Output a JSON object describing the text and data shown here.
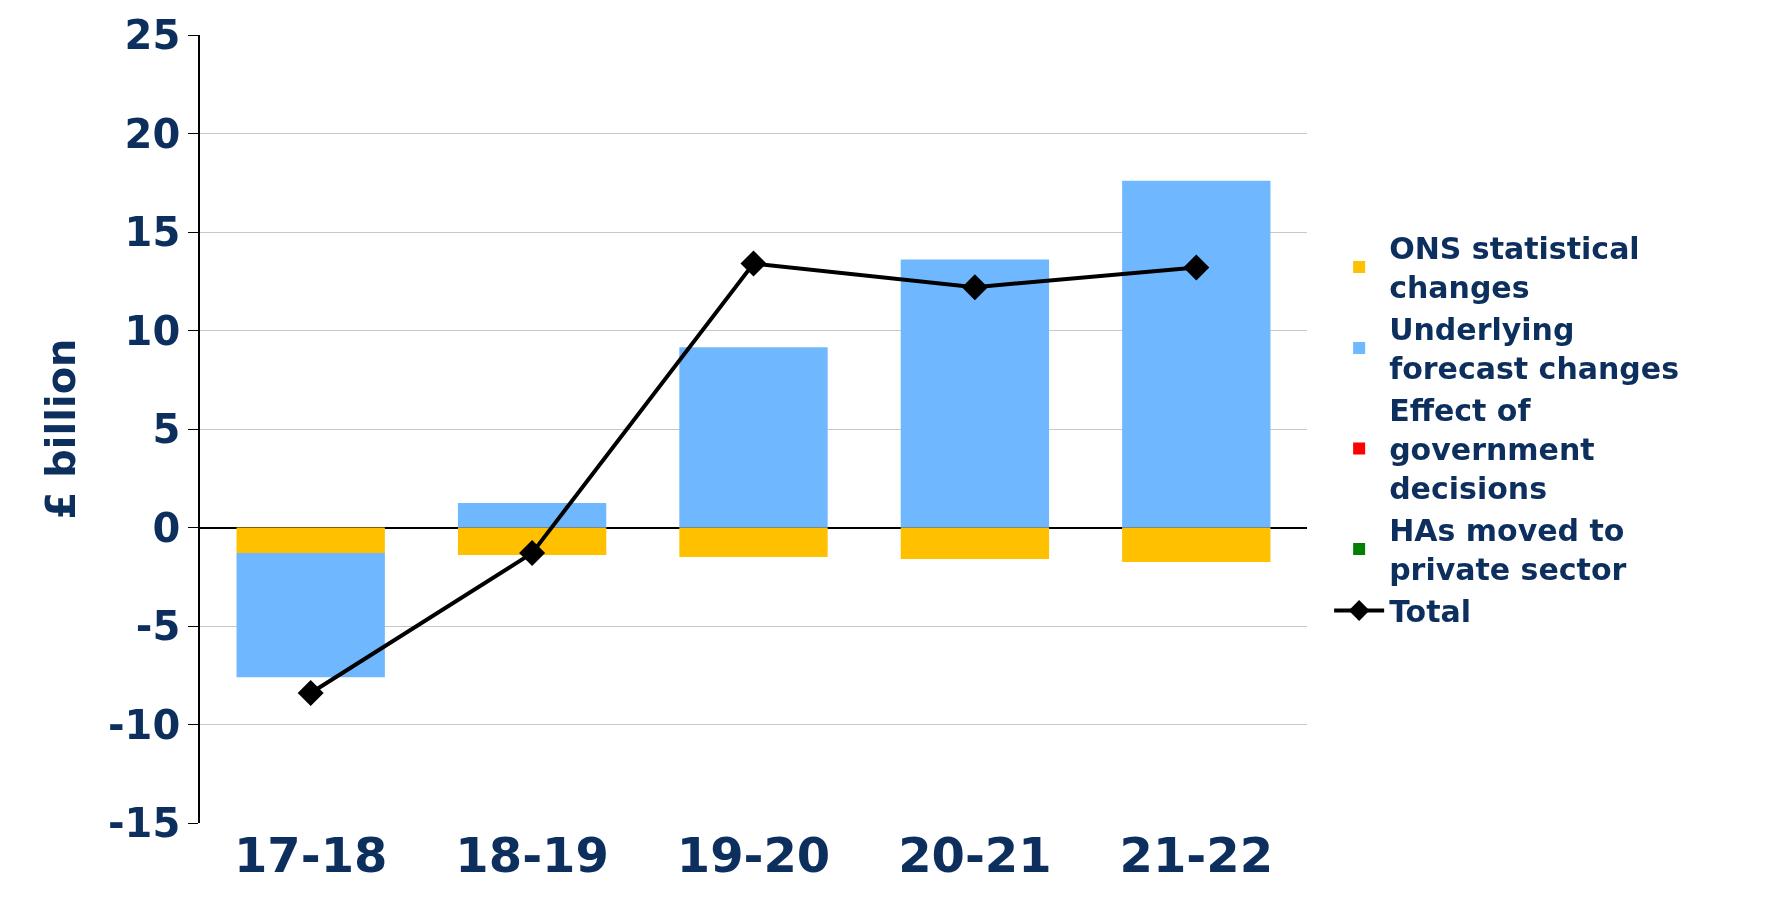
{
  "chart_data": {
    "type": "bar",
    "ylabel": "£ billion",
    "categories": [
      "17-18",
      "18-19",
      "19-20",
      "20-21",
      "21-22"
    ],
    "stacked": true,
    "series": [
      {
        "name": "ONS statistical changes",
        "color": "#ffc000",
        "values": [
          -1.3,
          -1.4,
          -1.5,
          -1.6,
          -1.75
        ]
      },
      {
        "name": "Underlying forecast changes",
        "color": "#6fb7ff",
        "values": [
          -6.3,
          1.25,
          9.15,
          13.6,
          17.6
        ]
      },
      {
        "name": "Effect of government decisions",
        "color": "#ff0000",
        "values": [
          null,
          null,
          null,
          null,
          null
        ]
      },
      {
        "name": "HAs moved to private sector",
        "color": "#008000",
        "values": [
          null,
          null,
          null,
          null,
          null
        ]
      },
      {
        "name": "Total",
        "type": "line",
        "color": "#000000",
        "marker": "diamond",
        "line_style": "solid",
        "values": [
          -8.4,
          -1.3,
          13.4,
          12.2,
          13.2
        ]
      }
    ],
    "ylim": [
      -15,
      25
    ],
    "yticks": [
      -15,
      -10,
      -5,
      0,
      5,
      10,
      15,
      20,
      25
    ],
    "grid": "y",
    "legend": "right"
  }
}
